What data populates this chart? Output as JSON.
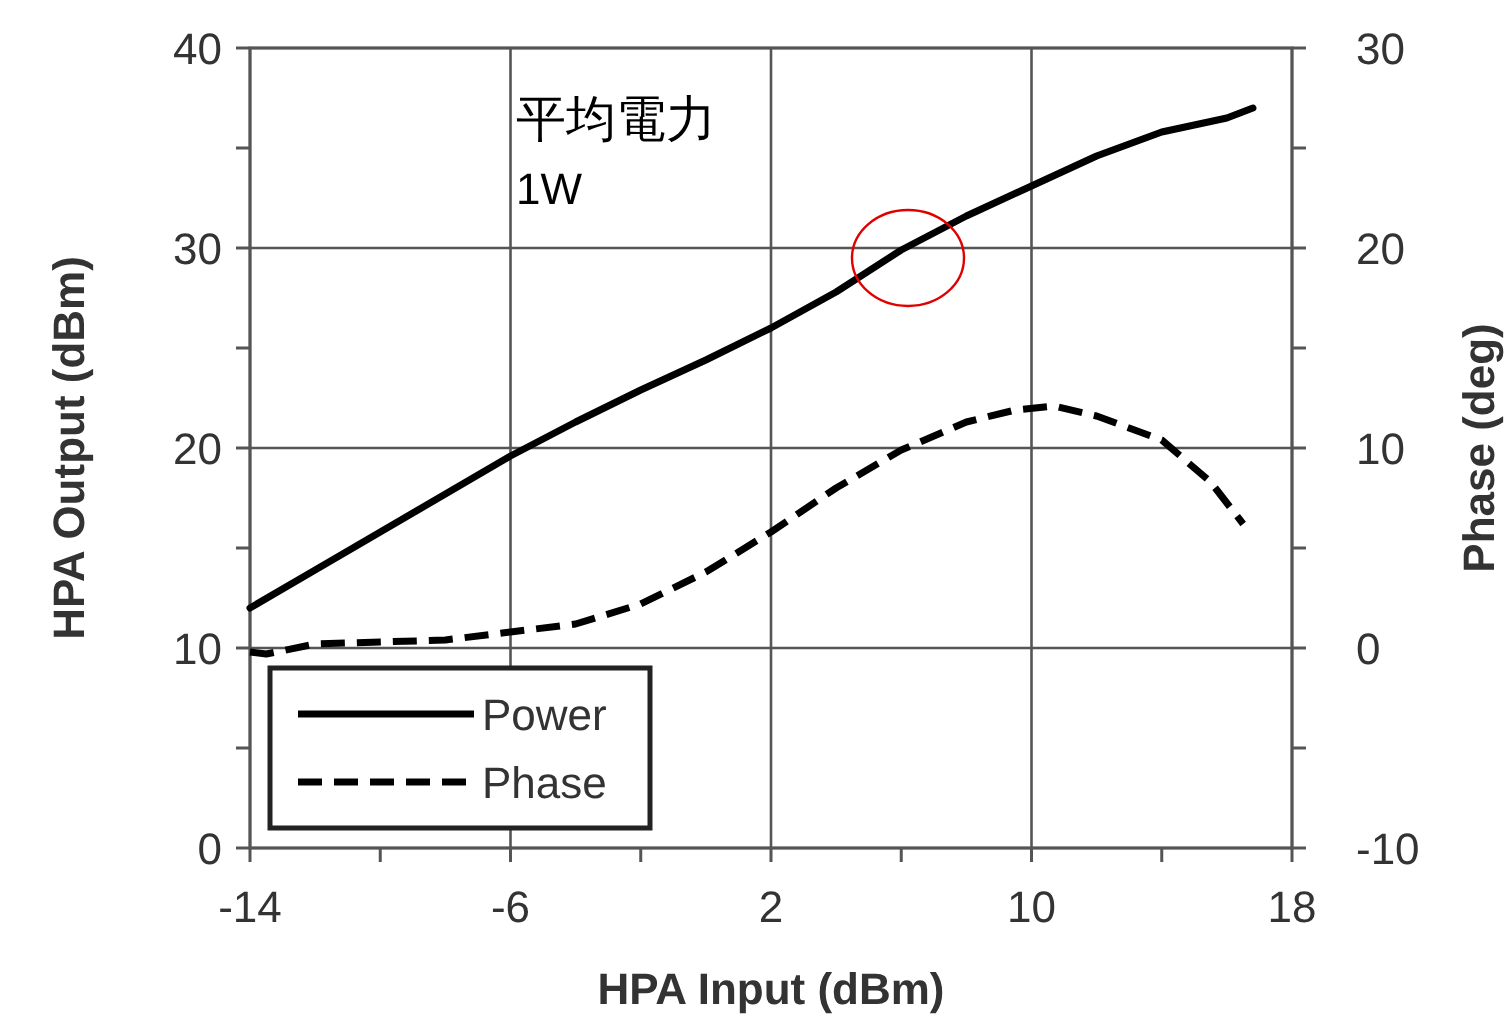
{
  "chart_data": {
    "type": "line",
    "xlabel": "HPA Input  (dBm)",
    "ylabel": "HPA Output  (dBm)",
    "y2label": "Phase  (deg)",
    "xlim": [
      -14,
      18
    ],
    "xticks": [
      -14,
      {
        "value": -10,
        "label": null
      },
      -6,
      {
        "value": -2,
        "label": null
      },
      2,
      {
        "value": 6,
        "label": null
      },
      10,
      {
        "value": 14,
        "label": null
      },
      18
    ],
    "ylim": [
      0,
      40
    ],
    "yticks": [
      0,
      {
        "value": 5,
        "label": null
      },
      10,
      {
        "value": 15,
        "label": null
      },
      20,
      {
        "value": 25,
        "label": null
      },
      30,
      {
        "value": 35,
        "label": null
      },
      40
    ],
    "y2lim": [
      -10,
      30
    ],
    "y2ticks": [
      -10,
      {
        "value": -5,
        "label": null
      },
      0,
      {
        "value": 5,
        "label": null
      },
      10,
      {
        "value": 15,
        "label": null
      },
      20,
      {
        "value": 25,
        "label": null
      },
      30
    ],
    "grid": true,
    "legend": "bottom left",
    "annotations": [
      "平均電力\n1W"
    ],
    "series": [
      {
        "name": "Power",
        "color": "#000000",
        "line_style": "solid",
        "x": [
          -14,
          -12,
          -10,
          -8,
          -6,
          -4,
          -2,
          0,
          2,
          4,
          6,
          8,
          10,
          12,
          14,
          16,
          16.8
        ],
        "values": [
          12,
          13.9,
          15.8,
          17.7,
          19.6,
          21.3,
          22.9,
          24.4,
          26,
          27.8,
          29.9,
          31.6,
          33.1,
          34.6,
          35.8,
          36.5,
          37
        ]
      },
      {
        "name": "Phase",
        "color": "#000000",
        "line_style": "dashed",
        "axis": "y2",
        "x": [
          -14,
          -13.5,
          -12,
          -10,
          -8,
          -6,
          -4,
          -2,
          0,
          2,
          4,
          6,
          8,
          9.5,
          10.7,
          12,
          14,
          15.5,
          16.5
        ],
        "values": [
          -0.2,
          -0.3,
          0.2,
          0.3,
          0.4,
          0.8,
          1.2,
          2.2,
          3.8,
          5.8,
          8,
          9.9,
          11.3,
          11.9,
          12.1,
          11.6,
          10.4,
          8.3,
          6.2
        ]
      }
    ]
  }
}
